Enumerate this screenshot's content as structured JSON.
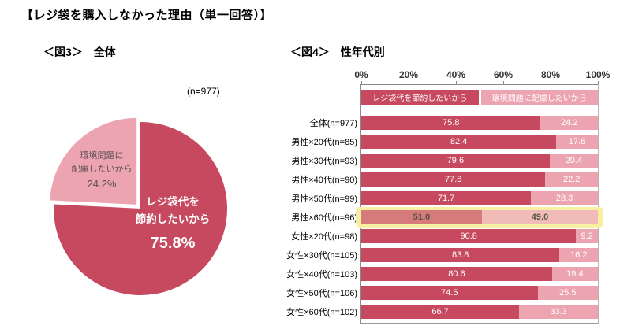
{
  "title": "【レジ袋を購入しなかった理由（単一回答）】",
  "chart_data": [
    {
      "type": "pie",
      "title": "＜図3＞　全体",
      "sample_label": "(n=977)",
      "slices": [
        {
          "label": "レジ袋代を節約したいから",
          "value": 75.8,
          "pct_label": "75.8%",
          "label_lines": [
            "レジ袋代を",
            "節約したいから"
          ],
          "color": "#c6495f",
          "text_color": "#ffffff",
          "exploded": false
        },
        {
          "label": "環境問題に配慮したいから",
          "value": 24.2,
          "pct_label": "24.2%",
          "label_lines": [
            "環境問題に",
            "配慮したいから"
          ],
          "color": "#eca4b1",
          "text_color": "#5a4d50",
          "exploded": true
        }
      ]
    },
    {
      "type": "bar",
      "subtype": "horizontal-stacked",
      "title": "＜図4＞　性年代別",
      "xlim": [
        0,
        100
      ],
      "x_ticks": [
        "0%",
        "20%",
        "40%",
        "60%",
        "80%",
        "100%"
      ],
      "grid": false,
      "legend_position": "top",
      "series": [
        {
          "name": "レジ袋代を節約したいから",
          "color": "#c6495f"
        },
        {
          "name": "環境問題に配慮したいから",
          "color": "#eca4b1"
        }
      ],
      "categories": [
        "全体(n=977)",
        "男性×20代(n=85)",
        "男性×30代(n=93)",
        "男性×40代(n=90)",
        "男性×50代(n=99)",
        "男性×60代(n=96)",
        "女性×20代(n=98)",
        "女性×30代(n=105)",
        "女性×40代(n=103)",
        "女性×50代(n=106)",
        "女性×60代(n=102)"
      ],
      "values": [
        [
          75.8,
          24.2
        ],
        [
          82.4,
          17.6
        ],
        [
          79.6,
          20.4
        ],
        [
          77.8,
          22.2
        ],
        [
          71.7,
          28.3
        ],
        [
          51.0,
          49.0
        ],
        [
          90.8,
          9.2
        ],
        [
          83.8,
          16.2
        ],
        [
          80.6,
          19.4
        ],
        [
          74.5,
          25.5
        ],
        [
          66.7,
          33.3
        ]
      ],
      "highlighted_category": "男性×60代(n=96)",
      "highlight_color": "#f7efa2"
    }
  ]
}
